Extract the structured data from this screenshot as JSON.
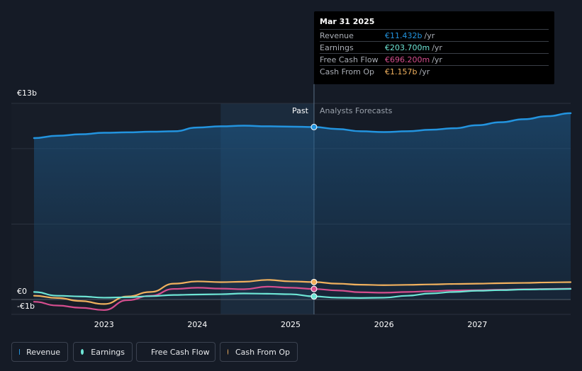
{
  "chart_data": {
    "type": "line",
    "x": [
      2022.25,
      2022.5,
      2022.75,
      2023.0,
      2023.25,
      2023.5,
      2023.75,
      2024.0,
      2024.25,
      2024.5,
      2024.75,
      2025.0,
      2025.25,
      2025.5,
      2025.75,
      2026.0,
      2026.25,
      2026.5,
      2026.75,
      2027.0,
      2027.25,
      2027.5,
      2027.75,
      2028.0
    ],
    "series": [
      {
        "name": "Revenue",
        "color": "#2394df",
        "values": [
          10.7,
          10.85,
          10.95,
          11.05,
          11.08,
          11.12,
          11.15,
          11.4,
          11.48,
          11.52,
          11.48,
          11.46,
          11.432,
          11.3,
          11.15,
          11.1,
          11.15,
          11.25,
          11.35,
          11.55,
          11.75,
          11.95,
          12.15,
          12.35
        ]
      },
      {
        "name": "Earnings",
        "color": "#6ee5d5",
        "values": [
          0.5,
          0.25,
          0.2,
          0.12,
          0.15,
          0.22,
          0.3,
          0.33,
          0.35,
          0.4,
          0.38,
          0.35,
          0.2037,
          0.12,
          0.1,
          0.12,
          0.25,
          0.4,
          0.5,
          0.58,
          0.62,
          0.66,
          0.68,
          0.7
        ]
      },
      {
        "name": "Free Cash Flow",
        "color": "#d54e8e",
        "values": [
          -0.15,
          -0.4,
          -0.55,
          -0.7,
          -0.05,
          0.25,
          0.7,
          0.78,
          0.72,
          0.68,
          0.85,
          0.78,
          0.6962,
          0.6,
          0.48,
          0.45,
          0.5,
          0.55,
          0.6,
          0.62,
          0.65,
          0.68,
          0.7,
          0.72
        ]
      },
      {
        "name": "Cash From Op",
        "color": "#f1b15e",
        "values": [
          0.25,
          0.1,
          -0.1,
          -0.3,
          0.2,
          0.5,
          1.05,
          1.2,
          1.15,
          1.18,
          1.3,
          1.2,
          1.157,
          1.05,
          0.98,
          0.95,
          0.97,
          1.0,
          1.03,
          1.05,
          1.08,
          1.1,
          1.13,
          1.15
        ]
      }
    ],
    "tick_labels": [
      "2023",
      "2024",
      "2025",
      "2026",
      "2027"
    ],
    "y_tick_labels": [
      "€13b",
      "€0",
      "-€1b"
    ],
    "ylim": [
      -1,
      13
    ],
    "xlim": [
      2022.25,
      2028.0
    ],
    "past_region": [
      2024.25,
      2025.25
    ],
    "divider_x": 2025.25,
    "past_label": "Past",
    "forecast_label": "Analysts Forecasts",
    "grid": true,
    "legend_position": "bottom-left"
  },
  "tooltip": {
    "date": "Mar 31 2025",
    "rows": [
      {
        "label": "Revenue",
        "value": "€11.432b",
        "unit": "/yr",
        "color": "#2394df"
      },
      {
        "label": "Earnings",
        "value": "€203.700m",
        "unit": "/yr",
        "color": "#6ee5d5"
      },
      {
        "label": "Free Cash Flow",
        "value": "€696.200m",
        "unit": "/yr",
        "color": "#d54e8e"
      },
      {
        "label": "Cash From Op",
        "value": "€1.157b",
        "unit": "/yr",
        "color": "#f1b15e"
      }
    ]
  },
  "legend": [
    {
      "label": "Revenue",
      "color": "#2394df"
    },
    {
      "label": "Earnings",
      "color": "#6ee5d5"
    },
    {
      "label": "Free Cash Flow",
      "color": "#d54e8e"
    },
    {
      "label": "Cash From Op",
      "color": "#f1b15e"
    }
  ]
}
